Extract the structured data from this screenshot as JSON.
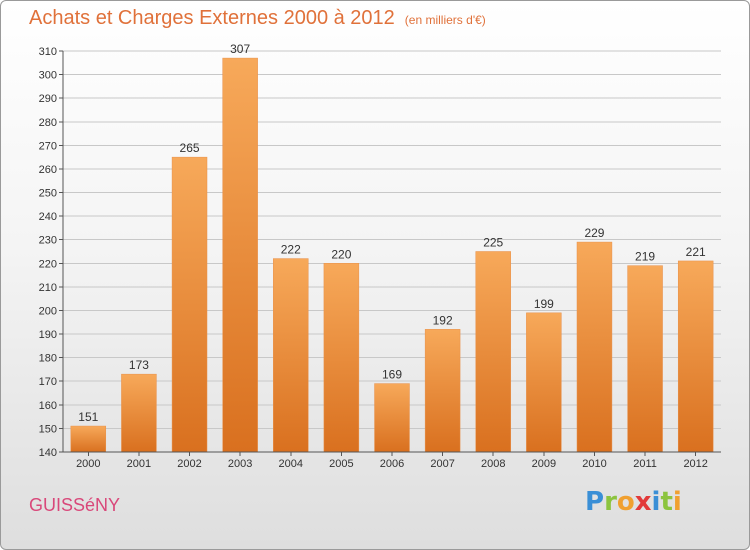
{
  "header": {
    "title": "Achats et Charges Externes 2000 à 2012",
    "unit_note": "(en milliers d'€)"
  },
  "footer": {
    "town": "GUISSéNY",
    "brand_letters": [
      "P",
      "r",
      "o",
      "x",
      "i",
      "t",
      "i"
    ],
    "brand_colors": [
      "#3a8fd6",
      "#8cc43f",
      "#f0a030",
      "#e23a3a",
      "#3a8fd6",
      "#8cc43f",
      "#f0a030"
    ]
  },
  "chart_data": {
    "type": "bar",
    "title": "Achats et Charges Externes 2000 à 2012",
    "xlabel": "",
    "ylabel": "",
    "categories": [
      "2000",
      "2001",
      "2002",
      "2003",
      "2004",
      "2005",
      "2006",
      "2007",
      "2008",
      "2009",
      "2010",
      "2011",
      "2012"
    ],
    "values": [
      151,
      173,
      265,
      307,
      222,
      220,
      169,
      192,
      225,
      199,
      229,
      219,
      221
    ],
    "ylim": [
      140,
      310
    ],
    "yticks": [
      140,
      150,
      160,
      170,
      180,
      190,
      200,
      210,
      220,
      230,
      240,
      250,
      260,
      270,
      280,
      290,
      300,
      310
    ],
    "grid": true,
    "bar_color_light": "#f7a95a",
    "bar_color_dark": "#d9701f"
  }
}
